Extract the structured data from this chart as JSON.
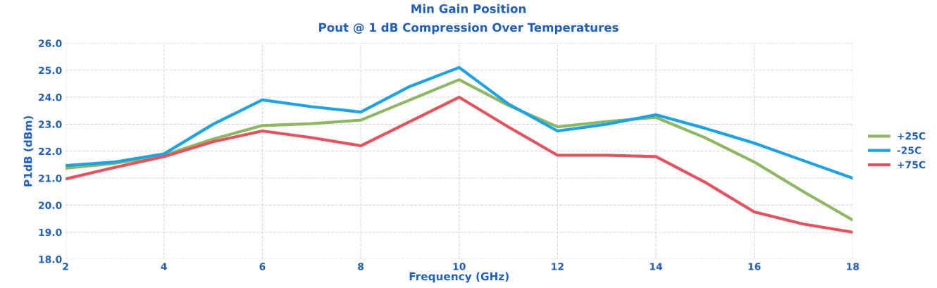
{
  "chart_data": {
    "type": "line",
    "title": "Min Gain Position",
    "subtitle": "Pout @ 1 dB Compression Over Temperatures",
    "xlabel": "Frequency (GHz)",
    "ylabel": "P1dB (dBm)",
    "x": [
      2,
      3,
      4,
      5,
      6,
      7,
      8,
      9,
      10,
      11,
      12,
      13,
      14,
      15,
      16,
      17,
      18
    ],
    "series": [
      {
        "name": "+25C",
        "color": "#8cb860",
        "values": [
          21.37,
          21.55,
          21.85,
          22.45,
          22.95,
          23.02,
          23.15,
          23.9,
          24.65,
          23.7,
          22.9,
          23.1,
          23.25,
          22.5,
          21.6,
          20.5,
          19.45
        ]
      },
      {
        "name": "-25C",
        "color": "#1aa3e8",
        "values": [
          21.47,
          21.6,
          21.9,
          23.0,
          23.9,
          23.65,
          23.45,
          24.4,
          25.1,
          23.75,
          22.75,
          23.0,
          23.35,
          22.85,
          22.3,
          21.65,
          21.0
        ]
      },
      {
        "name": "+75C",
        "color": "#e8505b",
        "values": [
          20.97,
          21.4,
          21.8,
          22.35,
          22.75,
          22.5,
          22.2,
          23.1,
          24.0,
          22.9,
          21.85,
          21.85,
          21.8,
          20.85,
          19.75,
          19.3,
          19.0
        ]
      }
    ],
    "xlim": [
      2,
      18
    ],
    "xticks": [
      2,
      4,
      6,
      8,
      10,
      12,
      14,
      16,
      18
    ],
    "ylim": [
      18,
      26
    ],
    "yticks": [
      {
        "value": 18,
        "label": "18.0"
      },
      {
        "value": 19,
        "label": "19.0"
      },
      {
        "value": 20,
        "label": "20.0"
      },
      {
        "value": 21,
        "label": "21.0"
      },
      {
        "value": 22,
        "label": "22.0"
      },
      {
        "value": 23,
        "label": "23.0"
      },
      {
        "value": 24,
        "label": "24.0"
      },
      {
        "value": 25,
        "label": "25.0"
      },
      {
        "value": 26,
        "label": "26.0"
      }
    ],
    "grid": true,
    "legend": "right",
    "marker": "none",
    "line_style": "solid"
  }
}
